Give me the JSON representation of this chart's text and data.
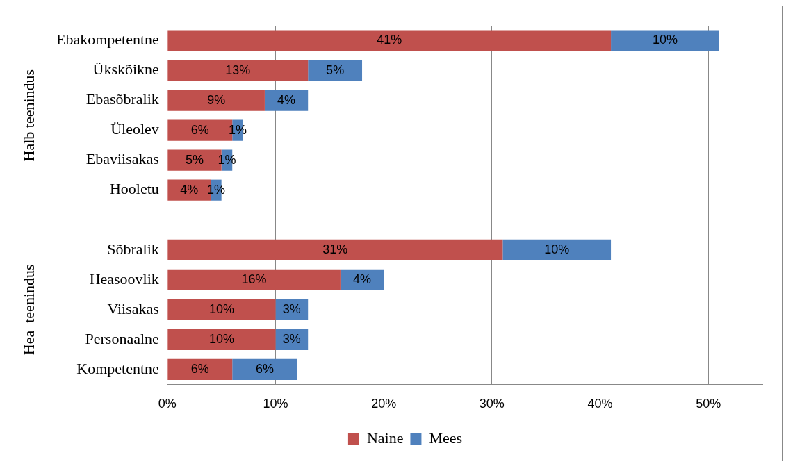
{
  "chart_data": {
    "type": "bar",
    "orientation": "horizontal",
    "stacked": true,
    "categories": [
      "Ebakompetentne",
      "Ükskõikne",
      "Ebasõbralik",
      "Üleolev",
      "Ebaviisakas",
      "Hooletu",
      null,
      "Sõbralik",
      "Heasoovlik",
      "Viisakas",
      "Personaalne",
      "Kompetentne"
    ],
    "series": [
      {
        "name": "Naine",
        "color": "#c0504d",
        "values": [
          41,
          13,
          9,
          6,
          5,
          4,
          null,
          31,
          16,
          10,
          10,
          6
        ],
        "value_labels": [
          "41%",
          "13%",
          "9%",
          "6%",
          "5%",
          "4%",
          null,
          "31%",
          "16%",
          "10%",
          "10%",
          "6%"
        ]
      },
      {
        "name": "Mees",
        "color": "#4f81bd",
        "values": [
          10,
          5,
          4,
          1,
          1,
          1,
          null,
          10,
          4,
          3,
          3,
          6
        ],
        "value_labels": [
          "10%",
          "5%",
          "4%",
          "1%",
          "1%",
          "1%",
          null,
          "10%",
          "4%",
          "3%",
          "3%",
          "6%"
        ]
      }
    ],
    "xlim": [
      0,
      55
    ],
    "xticks": [
      {
        "value": 0,
        "label": "0%"
      },
      {
        "value": 10,
        "label": "10%"
      },
      {
        "value": 20,
        "label": "20%"
      },
      {
        "value": 30,
        "label": "30%"
      },
      {
        "value": 40,
        "label": "40%"
      },
      {
        "value": 50,
        "label": "50%"
      }
    ],
    "grid": "x",
    "legend": "bottom",
    "annotations": [
      "Halb teenindus",
      "Hea  teenindus"
    ]
  }
}
